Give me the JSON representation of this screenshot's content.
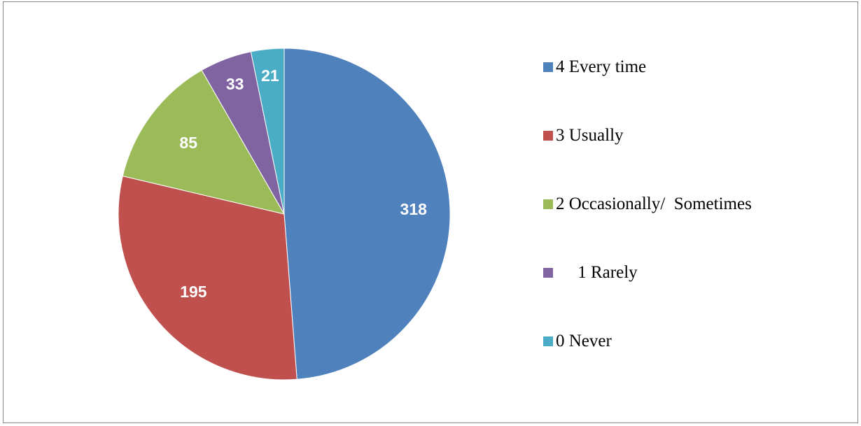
{
  "chart_data": {
    "type": "pie",
    "title": "",
    "categories": [
      "4 Every time",
      "3 Usually",
      "2 Occasionally/  Sometimes",
      "     1 Rarely",
      "0 Never"
    ],
    "values": [
      318,
      195,
      85,
      33,
      21
    ],
    "colors": [
      "#4F81BD",
      "#C0504D",
      "#9BBB59",
      "#8064A2",
      "#4BACC6"
    ],
    "start_angle": "12 o'clock",
    "direction": "clockwise",
    "data_labels": [
      "318",
      "195",
      "85",
      "33",
      "21"
    ],
    "legend_position": "right"
  }
}
